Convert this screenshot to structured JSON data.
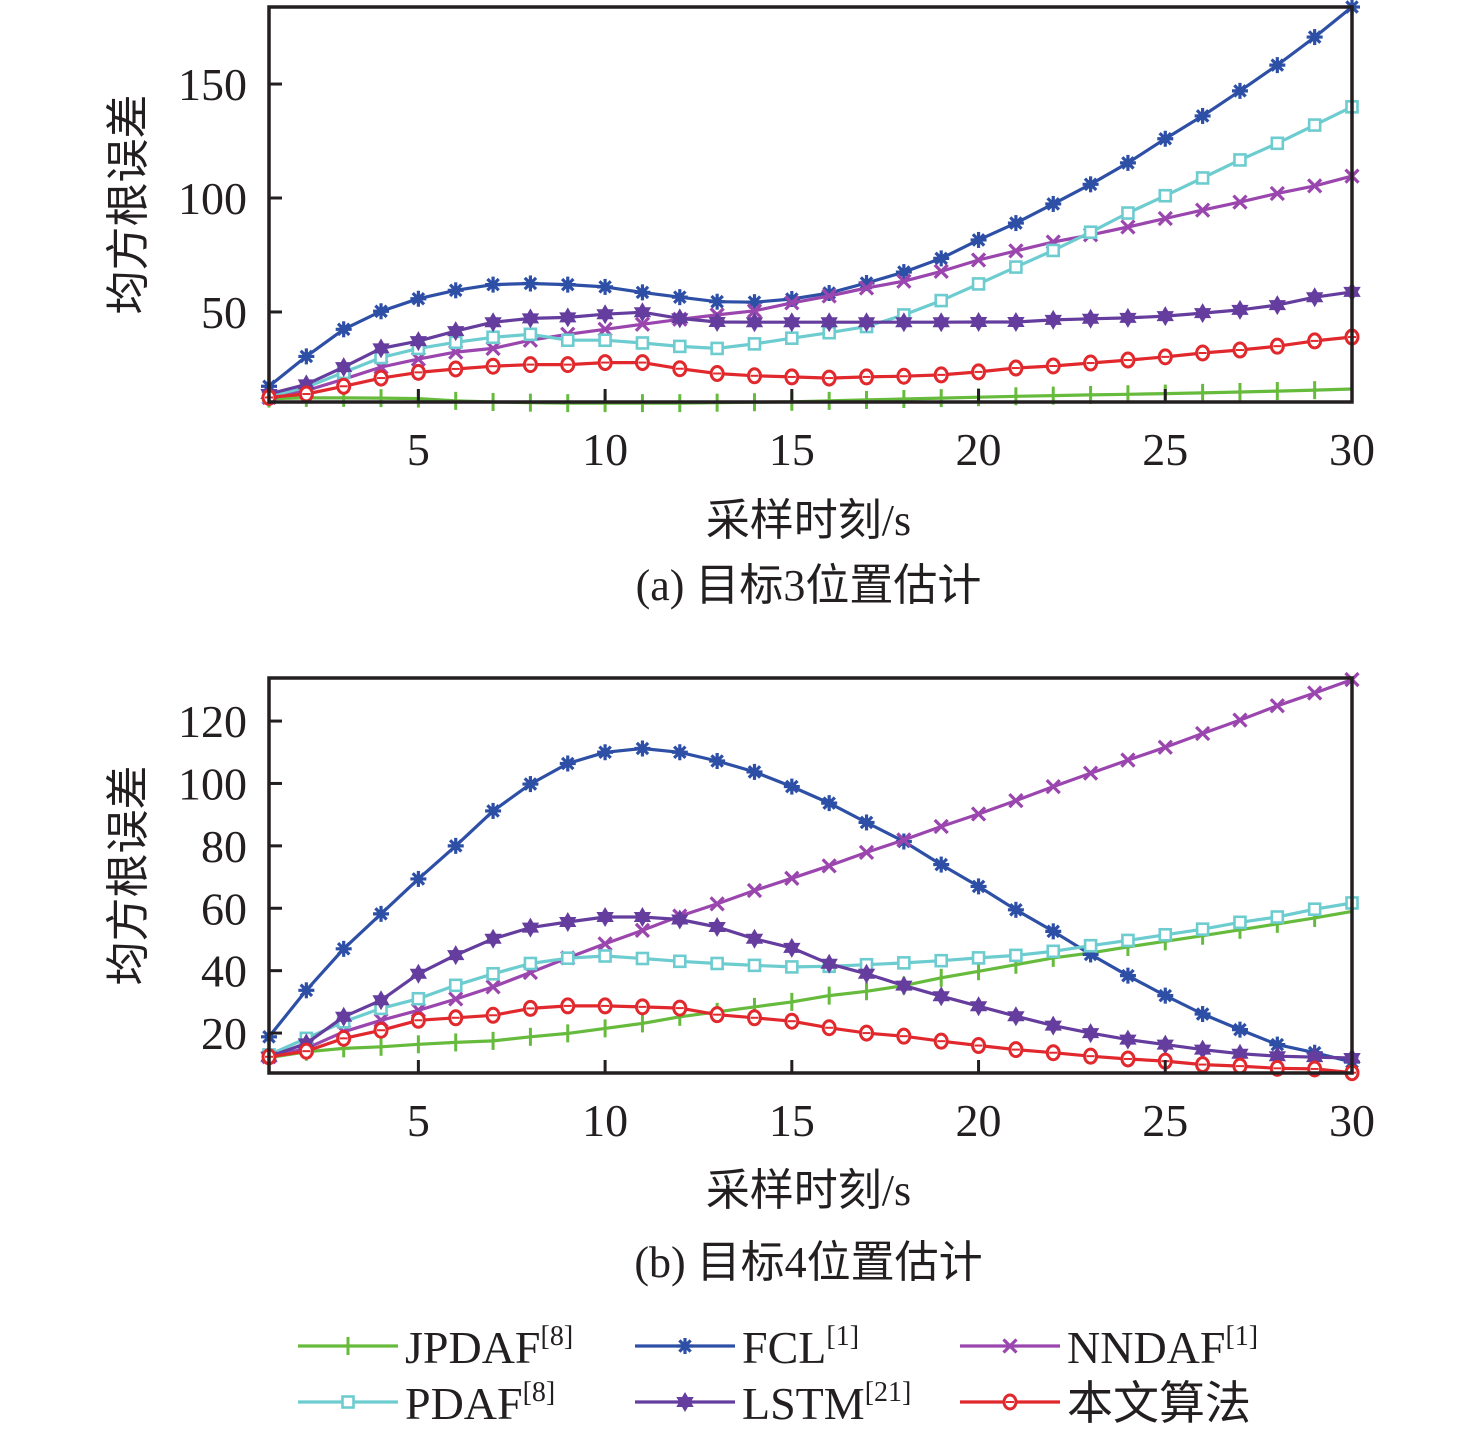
{
  "colors": {
    "JPDAF": "#66bb3c",
    "FCL": "#2d4fa6",
    "NNDAF": "#9a46ae",
    "PDAF": "#6dcccf",
    "LSTM": "#653d9e",
    "ours": "#e1282d",
    "axis": "#231f20"
  },
  "legend": {
    "items": [
      {
        "key": "JPDAF",
        "label": "JPDAF",
        "sup": "[8]",
        "marker": "plus"
      },
      {
        "key": "FCL",
        "label": "FCL",
        "sup": "[1]",
        "marker": "asterisk"
      },
      {
        "key": "NNDAF",
        "label": "NNDAF",
        "sup": "[1]",
        "marker": "cross"
      },
      {
        "key": "PDAF",
        "label": "PDAF",
        "sup": "[8]",
        "marker": "square"
      },
      {
        "key": "LSTM",
        "label": "LSTM",
        "sup": "[21]",
        "marker": "hexagram"
      },
      {
        "key": "ours",
        "label": "本文算法",
        "sup": "",
        "marker": "circle"
      }
    ]
  },
  "chart_data": [
    {
      "type": "line",
      "title": "",
      "caption": "(a) 目标3位置估计",
      "xlabel": "采样时刻/s",
      "ylabel": "均方根误差",
      "xlim": [
        1,
        30
      ],
      "ylim": [
        10.5,
        183.8
      ],
      "xticks": [
        5,
        10,
        15,
        20,
        25,
        30
      ],
      "yticks": [
        50,
        100,
        150
      ],
      "grid": false,
      "x": [
        1,
        2,
        3,
        4,
        5,
        6,
        7,
        8,
        9,
        10,
        11,
        12,
        13,
        14,
        15,
        16,
        17,
        18,
        19,
        20,
        21,
        22,
        23,
        24,
        25,
        26,
        27,
        28,
        29,
        30
      ],
      "series": [
        {
          "key": "JPDAF",
          "name": "JPDAF[8]",
          "values": [
            12.0,
            12.3,
            12.3,
            12.2,
            12.0,
            11.0,
            10.5,
            10.2,
            10.0,
            10.0,
            10.0,
            10.0,
            10.2,
            10.4,
            10.6,
            11.0,
            11.4,
            11.8,
            12.2,
            12.6,
            13.0,
            13.3,
            13.6,
            13.9,
            14.2,
            14.5,
            14.9,
            15.3,
            15.7,
            16.2
          ]
        },
        {
          "key": "FCL",
          "name": "FCL[1]",
          "values": [
            17.4,
            30.5,
            42.4,
            50.3,
            55.8,
            59.5,
            62.0,
            62.5,
            62.0,
            61.0,
            58.6,
            56.5,
            54.5,
            54.3,
            55.7,
            58.3,
            62.7,
            67.5,
            73.5,
            81.6,
            89.0,
            97.4,
            106.0,
            115.4,
            126.0,
            136.0,
            147.0,
            158.3,
            170.6,
            183.8
          ]
        },
        {
          "key": "NNDAF",
          "name": "NNDAF[1]",
          "values": [
            12.5,
            15.5,
            20.5,
            25.8,
            29.3,
            32.4,
            34.0,
            37.6,
            40.2,
            42.4,
            44.6,
            46.8,
            48.7,
            50.5,
            54.0,
            57.0,
            60.5,
            63.5,
            67.8,
            72.8,
            76.8,
            80.7,
            83.8,
            87.3,
            91.0,
            94.7,
            98.2,
            102.0,
            105.3,
            109.6
          ]
        },
        {
          "key": "PDAF",
          "name": "PDAF[8]",
          "values": [
            13.0,
            17.0,
            23.5,
            30.0,
            34.0,
            36.7,
            38.9,
            40.2,
            37.6,
            37.6,
            36.4,
            34.9,
            34.0,
            36.0,
            38.5,
            40.9,
            43.6,
            48.7,
            55.0,
            62.3,
            69.7,
            77.0,
            85.0,
            93.4,
            101.0,
            108.8,
            116.7,
            124.0,
            132.0,
            140.0
          ]
        },
        {
          "key": "LSTM",
          "name": "LSTM[21]",
          "values": [
            14.0,
            18.2,
            25.8,
            34.0,
            37.2,
            41.6,
            45.5,
            47.2,
            47.6,
            49.0,
            49.9,
            47.2,
            45.6,
            45.5,
            45.5,
            45.5,
            45.5,
            45.5,
            45.5,
            45.6,
            45.6,
            46.5,
            47.0,
            47.4,
            48.2,
            49.5,
            50.9,
            53.0,
            56.5,
            58.8
          ]
        },
        {
          "key": "ours",
          "name": "本文算法",
          "values": [
            12.5,
            14.0,
            17.4,
            21.0,
            23.5,
            25.0,
            26.2,
            26.9,
            26.9,
            27.8,
            27.8,
            25.1,
            23.0,
            22.0,
            21.5,
            21.0,
            21.5,
            21.8,
            22.4,
            23.7,
            25.4,
            26.3,
            27.6,
            28.9,
            30.3,
            32.0,
            33.3,
            35.0,
            37.3,
            39.0
          ]
        }
      ]
    },
    {
      "type": "line",
      "title": "",
      "caption": "(b) 目标4位置估计",
      "xlabel": "采样时刻/s",
      "ylabel": "均方根误差",
      "xlim": [
        1,
        30
      ],
      "ylim": [
        7.2,
        133.8
      ],
      "xticks": [
        5,
        10,
        15,
        20,
        25,
        30
      ],
      "yticks": [
        20,
        40,
        60,
        80,
        100,
        120
      ],
      "grid": false,
      "x": [
        1,
        2,
        3,
        4,
        5,
        6,
        7,
        8,
        9,
        10,
        11,
        12,
        13,
        14,
        15,
        16,
        17,
        18,
        19,
        20,
        21,
        22,
        23,
        24,
        25,
        26,
        27,
        28,
        29,
        30
      ],
      "series": [
        {
          "key": "JPDAF",
          "name": "JPDAF[8]",
          "values": [
            12.1,
            14.0,
            15.1,
            15.6,
            16.4,
            17.0,
            17.5,
            18.8,
            19.9,
            21.5,
            23.1,
            25.2,
            26.8,
            28.4,
            30.0,
            32.0,
            33.4,
            35.2,
            37.7,
            39.8,
            41.9,
            44.1,
            45.7,
            47.6,
            49.4,
            51.2,
            53.1,
            55.0,
            56.9,
            59.0
          ]
        },
        {
          "key": "FCL",
          "name": "FCL[1]",
          "values": [
            18.8,
            33.7,
            47.0,
            58.2,
            69.4,
            80.0,
            91.2,
            99.8,
            106.4,
            110.0,
            111.2,
            110.0,
            107.2,
            103.7,
            99.0,
            93.7,
            87.5,
            81.4,
            74.0,
            67.0,
            59.5,
            52.6,
            45.2,
            38.4,
            32.0,
            26.1,
            21.1,
            16.3,
            13.7,
            10.7
          ]
        },
        {
          "key": "NNDAF",
          "name": "NNDAF[1]",
          "values": [
            12.4,
            15.1,
            20.4,
            24.1,
            27.3,
            30.9,
            34.8,
            39.4,
            44.1,
            48.6,
            52.9,
            57.5,
            61.4,
            65.7,
            69.6,
            73.6,
            77.9,
            81.9,
            86.2,
            90.2,
            94.5,
            99.0,
            103.3,
            107.5,
            111.6,
            116.0,
            120.3,
            124.9,
            129.0,
            133.3
          ]
        },
        {
          "key": "PDAF",
          "name": "PDAF[8]",
          "values": [
            13.0,
            18.3,
            23.6,
            27.9,
            31.0,
            35.3,
            39.0,
            42.3,
            44.0,
            44.7,
            43.9,
            43.0,
            42.3,
            41.7,
            41.2,
            41.4,
            41.9,
            42.5,
            43.2,
            44.1,
            44.9,
            46.2,
            48.0,
            49.7,
            51.5,
            53.3,
            55.5,
            57.2,
            59.7,
            61.7
          ]
        },
        {
          "key": "LSTM",
          "name": "LSTM[21]",
          "values": [
            12.4,
            16.7,
            25.2,
            30.5,
            39.0,
            45.0,
            50.2,
            53.8,
            55.6,
            57.2,
            57.2,
            56.4,
            54.0,
            50.2,
            47.3,
            42.2,
            39.0,
            35.2,
            31.8,
            28.6,
            25.4,
            22.4,
            20.0,
            17.9,
            16.3,
            14.7,
            13.4,
            12.6,
            12.3,
            12.0
          ]
        },
        {
          "key": "ours",
          "name": "本文算法",
          "values": [
            12.4,
            14.2,
            18.3,
            20.9,
            24.1,
            24.9,
            25.7,
            27.9,
            28.7,
            28.7,
            28.4,
            28.0,
            25.9,
            24.9,
            23.8,
            21.7,
            20.0,
            19.0,
            17.4,
            16.0,
            14.7,
            13.7,
            12.6,
            11.7,
            11.0,
            9.9,
            9.4,
            8.7,
            8.5,
            7.3
          ]
        }
      ]
    }
  ]
}
